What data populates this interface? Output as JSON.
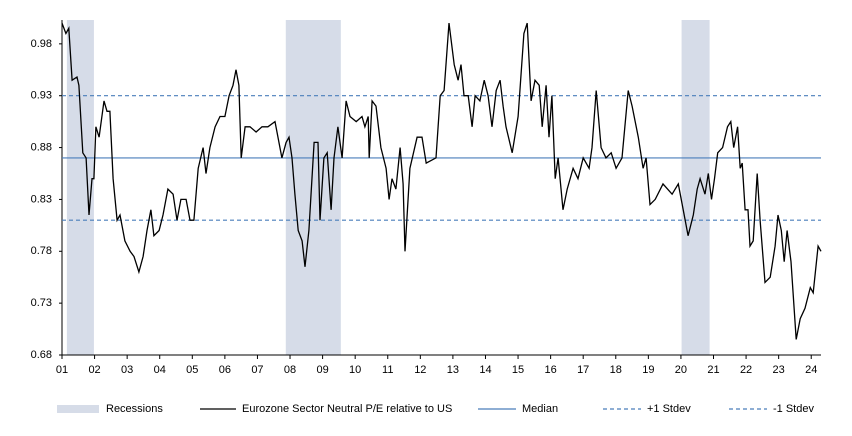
{
  "chart_data": {
    "type": "line",
    "x": [
      2001.0,
      2001.12,
      2001.21,
      2001.31,
      2001.46,
      2001.52,
      2001.64,
      2001.74,
      2001.83,
      2001.92,
      2001.98,
      2002.04,
      2002.14,
      2002.29,
      2002.38,
      2002.47,
      2002.57,
      2002.69,
      2002.78,
      2002.93,
      2003.09,
      2003.21,
      2003.36,
      2003.49,
      2003.61,
      2003.73,
      2003.82,
      2003.98,
      2004.1,
      2004.25,
      2004.41,
      2004.53,
      2004.65,
      2004.81,
      2004.93,
      2005.05,
      2005.18,
      2005.33,
      2005.42,
      2005.54,
      2005.7,
      2005.85,
      2006.0,
      2006.13,
      2006.25,
      2006.34,
      2006.43,
      2006.5,
      2006.62,
      2006.77,
      2006.96,
      2007.14,
      2007.32,
      2007.54,
      2007.75,
      2007.88,
      2007.97,
      2008.06,
      2008.15,
      2008.25,
      2008.37,
      2008.46,
      2008.58,
      2008.74,
      2008.86,
      2008.92,
      2009.04,
      2009.14,
      2009.26,
      2009.35,
      2009.47,
      2009.6,
      2009.72,
      2009.84,
      2010.03,
      2010.21,
      2010.3,
      2010.4,
      2010.43,
      2010.52,
      2010.64,
      2010.79,
      2010.95,
      2011.04,
      2011.13,
      2011.25,
      2011.38,
      2011.47,
      2011.53,
      2011.68,
      2011.9,
      2012.05,
      2012.18,
      2012.48,
      2012.61,
      2012.73,
      2012.88,
      2013.04,
      2013.16,
      2013.25,
      2013.34,
      2013.47,
      2013.59,
      2013.68,
      2013.83,
      2013.96,
      2014.08,
      2014.2,
      2014.33,
      2014.45,
      2014.54,
      2014.63,
      2014.82,
      2015.0,
      2015.18,
      2015.28,
      2015.4,
      2015.52,
      2015.65,
      2015.74,
      2015.86,
      2015.95,
      2016.04,
      2016.14,
      2016.23,
      2016.38,
      2016.51,
      2016.69,
      2016.84,
      2017.0,
      2017.18,
      2017.27,
      2017.4,
      2017.55,
      2017.7,
      2017.86,
      2018.01,
      2018.19,
      2018.38,
      2018.5,
      2018.69,
      2018.84,
      2018.93,
      2019.05,
      2019.21,
      2019.45,
      2019.73,
      2019.92,
      2020.07,
      2020.22,
      2020.38,
      2020.5,
      2020.59,
      2020.74,
      2020.84,
      2020.94,
      2021.03,
      2021.13,
      2021.28,
      2021.43,
      2021.53,
      2021.62,
      2021.74,
      2021.82,
      2021.88,
      2021.97,
      2022.06,
      2022.12,
      2022.22,
      2022.34,
      2022.43,
      2022.58,
      2022.74,
      2022.89,
      2022.98,
      2023.08,
      2023.17,
      2023.26,
      2023.38,
      2023.54,
      2023.66,
      2023.81,
      2023.97,
      2024.06,
      2024.21,
      2024.3
    ],
    "series": [
      {
        "name": "Eurozone Sector Neutral P/E relative to US",
        "color": "#000000",
        "values": [
          1.0,
          0.99,
          0.995,
          0.945,
          0.948,
          0.94,
          0.875,
          0.87,
          0.815,
          0.85,
          0.85,
          0.9,
          0.89,
          0.925,
          0.915,
          0.915,
          0.85,
          0.81,
          0.815,
          0.79,
          0.78,
          0.775,
          0.76,
          0.775,
          0.8,
          0.82,
          0.795,
          0.8,
          0.815,
          0.84,
          0.835,
          0.81,
          0.83,
          0.83,
          0.81,
          0.81,
          0.86,
          0.88,
          0.855,
          0.88,
          0.9,
          0.91,
          0.91,
          0.93,
          0.94,
          0.955,
          0.94,
          0.87,
          0.9,
          0.9,
          0.895,
          0.9,
          0.9,
          0.905,
          0.87,
          0.885,
          0.89,
          0.87,
          0.835,
          0.8,
          0.79,
          0.765,
          0.8,
          0.885,
          0.885,
          0.81,
          0.87,
          0.875,
          0.82,
          0.87,
          0.9,
          0.87,
          0.925,
          0.91,
          0.905,
          0.91,
          0.9,
          0.91,
          0.87,
          0.925,
          0.92,
          0.88,
          0.86,
          0.83,
          0.85,
          0.84,
          0.88,
          0.845,
          0.78,
          0.86,
          0.89,
          0.89,
          0.865,
          0.87,
          0.93,
          0.935,
          1.0,
          0.96,
          0.945,
          0.96,
          0.93,
          0.93,
          0.9,
          0.93,
          0.925,
          0.945,
          0.93,
          0.9,
          0.935,
          0.945,
          0.92,
          0.9,
          0.875,
          0.91,
          0.99,
          1.0,
          0.925,
          0.945,
          0.94,
          0.9,
          0.94,
          0.89,
          0.93,
          0.85,
          0.87,
          0.82,
          0.84,
          0.86,
          0.85,
          0.87,
          0.86,
          0.88,
          0.935,
          0.88,
          0.87,
          0.875,
          0.86,
          0.87,
          0.935,
          0.92,
          0.89,
          0.86,
          0.87,
          0.825,
          0.83,
          0.845,
          0.835,
          0.845,
          0.82,
          0.795,
          0.815,
          0.84,
          0.85,
          0.835,
          0.855,
          0.83,
          0.85,
          0.875,
          0.88,
          0.9,
          0.905,
          0.88,
          0.9,
          0.86,
          0.865,
          0.82,
          0.82,
          0.785,
          0.79,
          0.855,
          0.81,
          0.75,
          0.755,
          0.785,
          0.815,
          0.8,
          0.77,
          0.8,
          0.77,
          0.695,
          0.715,
          0.725,
          0.745,
          0.74,
          0.785,
          0.78
        ]
      }
    ],
    "reference_lines": [
      {
        "name": "Median",
        "value": 0.87,
        "color": "#4a7ebb",
        "dashed": false
      },
      {
        "name": "+1 Stdev",
        "value": 0.93,
        "color": "#4a7ebb",
        "dashed": true
      },
      {
        "name": "-1 Stdev",
        "value": 0.81,
        "color": "#4a7ebb",
        "dashed": true
      }
    ],
    "shaded_regions": {
      "name": "Recessions",
      "color": "#d6dce8",
      "ranges": [
        [
          2001.15,
          2001.98
        ],
        [
          2007.87,
          2009.56
        ],
        [
          2020.02,
          2020.88
        ]
      ]
    },
    "xlim": [
      2001,
      2024.3
    ],
    "xticks": [
      {
        "value": 2001,
        "label": "01"
      },
      {
        "value": 2002,
        "label": "02"
      },
      {
        "value": 2003,
        "label": "03"
      },
      {
        "value": 2004,
        "label": "04"
      },
      {
        "value": 2005,
        "label": "05"
      },
      {
        "value": 2006,
        "label": "06"
      },
      {
        "value": 2007,
        "label": "07"
      },
      {
        "value": 2008,
        "label": "08"
      },
      {
        "value": 2009,
        "label": "09"
      },
      {
        "value": 2010,
        "label": "10"
      },
      {
        "value": 2011,
        "label": "11"
      },
      {
        "value": 2012,
        "label": "12"
      },
      {
        "value": 2013,
        "label": "13"
      },
      {
        "value": 2014,
        "label": "14"
      },
      {
        "value": 2015,
        "label": "15"
      },
      {
        "value": 2016,
        "label": "16"
      },
      {
        "value": 2017,
        "label": "17"
      },
      {
        "value": 2018,
        "label": "18"
      },
      {
        "value": 2019,
        "label": "19"
      },
      {
        "value": 2020,
        "label": "20"
      },
      {
        "value": 2021,
        "label": "21"
      },
      {
        "value": 2022,
        "label": "22"
      },
      {
        "value": 2023,
        "label": "23"
      },
      {
        "value": 2024,
        "label": "24"
      }
    ],
    "ylim": [
      0.68,
      1.003
    ],
    "yticks": [
      0.68,
      0.73,
      0.78,
      0.83,
      0.88,
      0.93,
      0.98
    ]
  }
}
